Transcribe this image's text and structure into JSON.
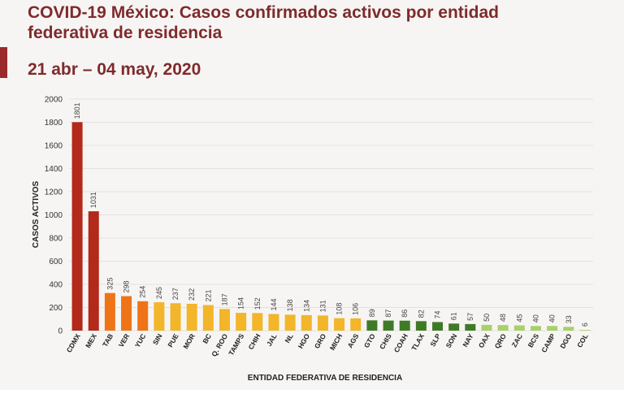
{
  "chart_data": {
    "type": "bar",
    "title": "COVID-19 México: Casos confirmados activos por entidad federativa de residencia",
    "subtitle": "21 abr – 04 may, 2020",
    "y_label": "CASOS ACTIVOS",
    "x_label": "ENTIDAD FEDERATIVA DE RESIDENCIA",
    "categories": [
      "CDMX",
      "MEX",
      "TAB",
      "VER",
      "YUC",
      "SIN",
      "PUE",
      "MOR",
      "BC",
      "Q. ROO",
      "TAMPS",
      "CHIH",
      "JAL",
      "NL",
      "HGO",
      "GRO",
      "MICH",
      "AGS",
      "GTO",
      "CHIS",
      "COAH",
      "TLAX",
      "SLP",
      "SON",
      "NAY",
      "OAX",
      "QRO",
      "ZAC",
      "BCS",
      "CAMP",
      "DGO",
      "COL"
    ],
    "values": [
      1801,
      1031,
      325,
      298,
      254,
      245,
      237,
      232,
      221,
      187,
      154,
      152,
      144,
      138,
      134,
      131,
      108,
      106,
      89,
      87,
      86,
      82,
      74,
      61,
      57,
      50,
      48,
      45,
      40,
      40,
      33,
      6
    ],
    "colors": [
      "#b3291a",
      "#b3291a",
      "#ef7418",
      "#ef7418",
      "#ef7418",
      "#f3b52a",
      "#f3b52a",
      "#f3b52a",
      "#f3b52a",
      "#f3b52a",
      "#f3b52a",
      "#f3b52a",
      "#f3b52a",
      "#f3b52a",
      "#f3b52a",
      "#f3b52a",
      "#f3b52a",
      "#f3b52a",
      "#3f7b27",
      "#3f7b27",
      "#3f7b27",
      "#3f7b27",
      "#3f7b27",
      "#3f7b27",
      "#3f7b27",
      "#a8d06c",
      "#a8d06c",
      "#a8d06c",
      "#a8d06c",
      "#a8d06c",
      "#a8d06c",
      "#a8d06c"
    ],
    "ylim": [
      0,
      2000
    ],
    "yticks": [
      0,
      200,
      400,
      600,
      800,
      1000,
      1200,
      1400,
      1600,
      1800,
      2000
    ],
    "grid": true
  }
}
